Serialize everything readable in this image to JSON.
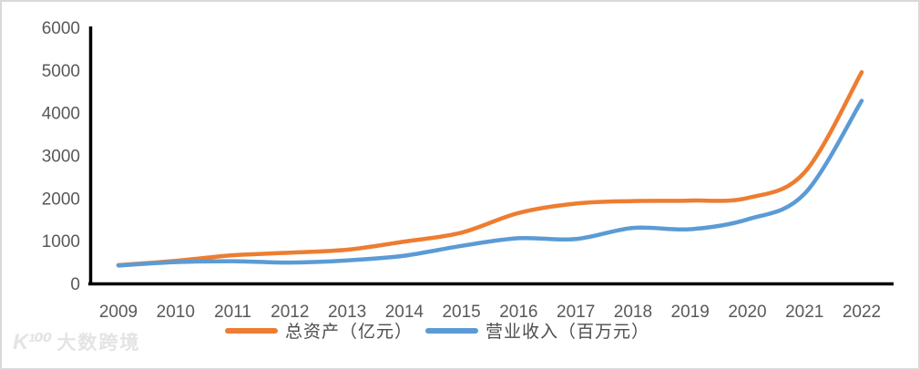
{
  "chart_data": {
    "type": "line",
    "title": "",
    "categories": [
      "2009",
      "2010",
      "2011",
      "2012",
      "2013",
      "2014",
      "2015",
      "2016",
      "2017",
      "2018",
      "2019",
      "2020",
      "2021",
      "2022"
    ],
    "series": [
      {
        "name": "总资产（亿元）",
        "color": "#ED7D31",
        "values": [
          430,
          530,
          660,
          720,
          790,
          980,
          1190,
          1650,
          1870,
          1930,
          1940,
          2000,
          2600,
          4950
        ]
      },
      {
        "name": "营业收入（百万元）",
        "color": "#5B9BD5",
        "values": [
          420,
          500,
          520,
          490,
          540,
          650,
          880,
          1060,
          1040,
          1300,
          1270,
          1500,
          2100,
          4280
        ]
      }
    ],
    "xlabel": "",
    "ylabel": "",
    "ylim": [
      0,
      6000
    ],
    "yticks": [
      0,
      1000,
      2000,
      3000,
      4000,
      5000,
      6000
    ],
    "grid": false,
    "smooth": true,
    "legend_position": "bottom"
  },
  "colors": {
    "axis": "#000000",
    "tick_label": "#595959",
    "frame_border": "#d9d9d9",
    "watermark": "#e4e4e4"
  },
  "watermark": {
    "logo": "K¹⁰⁰",
    "text": "大数跨境"
  }
}
